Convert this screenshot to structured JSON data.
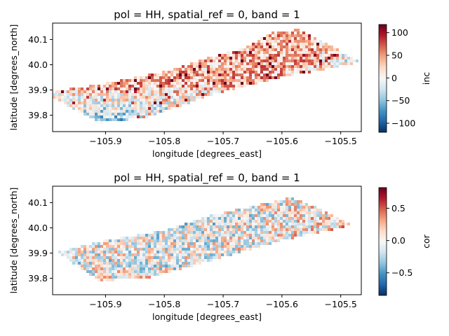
{
  "chart_data": [
    {
      "type": "heatmap",
      "title": "pol = HH, spatial_ref = 0, band = 1",
      "xlabel": "longitude [degrees_east]",
      "ylabel": "latitude [degrees_north]",
      "xlim": [
        -105.99,
        -105.465
      ],
      "ylim": [
        39.735,
        40.165
      ],
      "xticks": [
        -105.9,
        -105.8,
        -105.7,
        -105.6,
        -105.5
      ],
      "xtick_labels": [
        "−105.9",
        "−105.8",
        "−105.7",
        "−105.6",
        "−105.5"
      ],
      "yticks": [
        39.8,
        39.9,
        40.0,
        40.1
      ],
      "ytick_labels": [
        "39.8",
        "39.9",
        "40.0",
        "40.1"
      ],
      "colorbar": {
        "label": "inc",
        "colormap": "RdBu_r",
        "vmin": -120,
        "vmax": 118,
        "ticks": [
          -100,
          -50,
          0,
          50,
          100
        ],
        "tick_labels": [
          "−100",
          "−50",
          "0",
          "50",
          "100"
        ]
      },
      "footprint": [
        [
          -105.99,
          39.895
        ],
        [
          -105.9,
          39.925
        ],
        [
          -105.8,
          39.972
        ],
        [
          -105.72,
          40.03
        ],
        [
          -105.66,
          40.07
        ],
        [
          -105.62,
          40.125
        ],
        [
          -105.57,
          40.14
        ],
        [
          -105.465,
          40.01
        ],
        [
          -105.6,
          39.95
        ],
        [
          -105.72,
          39.88
        ],
        [
          -105.83,
          39.79
        ],
        [
          -105.91,
          39.77
        ],
        [
          -105.99,
          39.87
        ]
      ]
    },
    {
      "type": "heatmap",
      "title": "pol = HH, spatial_ref = 0, band = 1",
      "xlabel": "longitude [degrees_east]",
      "ylabel": "latitude [degrees_north]",
      "xlim": [
        -105.99,
        -105.465
      ],
      "ylim": [
        39.735,
        40.165
      ],
      "xticks": [
        -105.9,
        -105.8,
        -105.7,
        -105.6,
        -105.5
      ],
      "xtick_labels": [
        "−105.9",
        "−105.8",
        "−105.7",
        "−105.6",
        "−105.5"
      ],
      "yticks": [
        39.8,
        39.9,
        40.0,
        40.1
      ],
      "ytick_labels": [
        "39.8",
        "39.9",
        "40.0",
        "40.1"
      ],
      "colorbar": {
        "label": "cor",
        "colormap": "RdBu_r",
        "vmin": -0.85,
        "vmax": 0.82,
        "ticks": [
          -0.5,
          0.0,
          0.5
        ],
        "tick_labels": [
          "−0.5",
          "0.0",
          "0.5"
        ]
      },
      "footprint": [
        [
          -105.98,
          39.905
        ],
        [
          -105.9,
          39.95
        ],
        [
          -105.8,
          39.99
        ],
        [
          -105.72,
          40.05
        ],
        [
          -105.66,
          40.08
        ],
        [
          -105.585,
          40.12
        ],
        [
          -105.55,
          40.09
        ],
        [
          -105.48,
          40.01
        ],
        [
          -105.6,
          39.95
        ],
        [
          -105.72,
          39.87
        ],
        [
          -105.83,
          39.8
        ],
        [
          -105.91,
          39.79
        ],
        [
          -105.95,
          39.85
        ]
      ]
    }
  ]
}
